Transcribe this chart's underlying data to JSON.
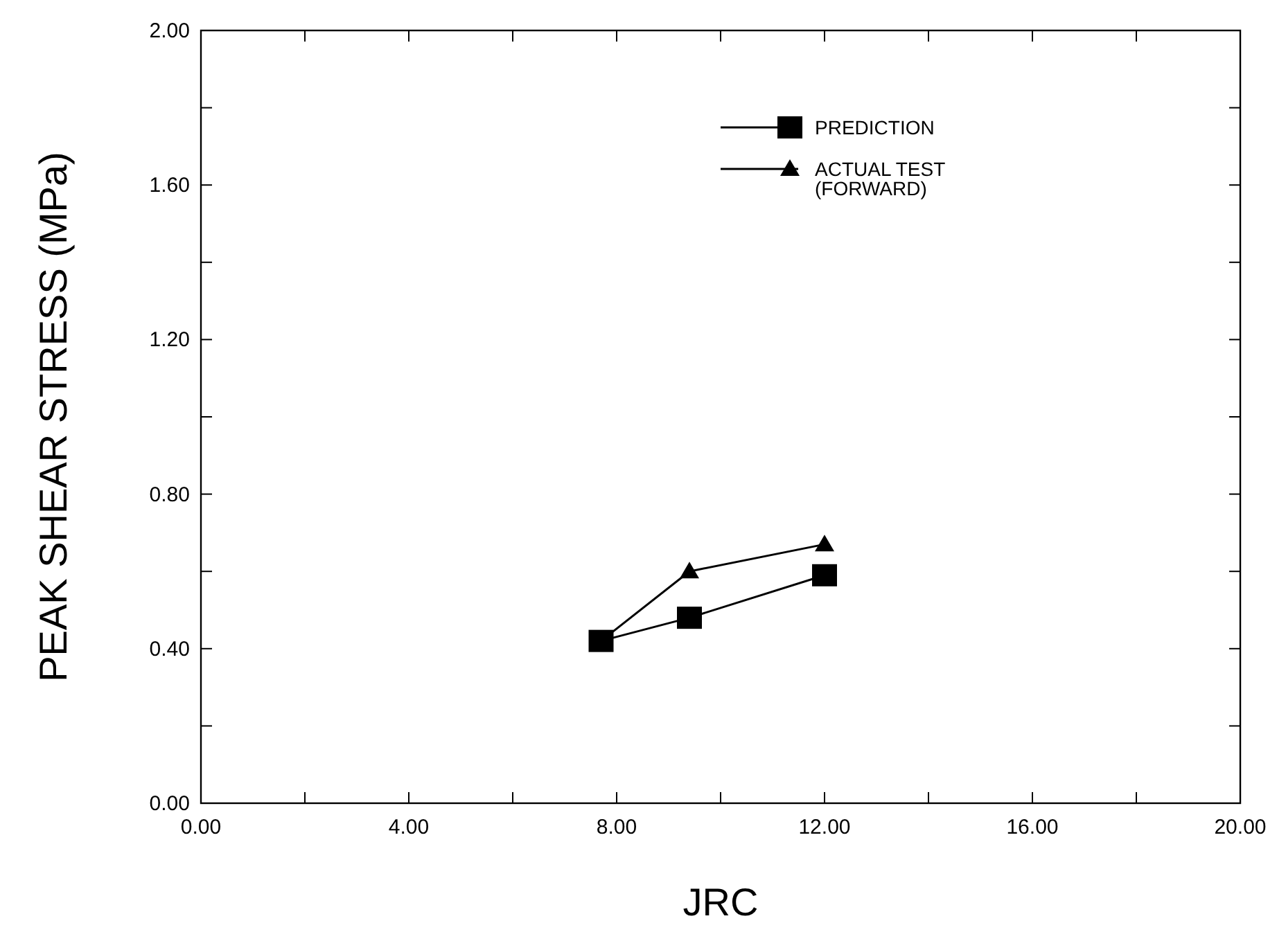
{
  "chart_data": {
    "type": "line",
    "xlabel": "JRC",
    "ylabel": "PEAK SHEAR STRESS (MPa)",
    "xlim": [
      0,
      20
    ],
    "ylim": [
      0,
      2
    ],
    "xticks": [
      {
        "value": 0,
        "label": "0.00"
      },
      {
        "value": 2,
        "label": null
      },
      {
        "value": 4,
        "label": "4.00"
      },
      {
        "value": 6,
        "label": null
      },
      {
        "value": 8,
        "label": "8.00"
      },
      {
        "value": 10,
        "label": null
      },
      {
        "value": 12,
        "label": "12.00"
      },
      {
        "value": 14,
        "label": null
      },
      {
        "value": 16,
        "label": "16.00"
      },
      {
        "value": 18,
        "label": null
      },
      {
        "value": 20,
        "label": "20.00"
      }
    ],
    "yticks": [
      {
        "value": 0,
        "label": "0.00"
      },
      {
        "value": 0.2,
        "label": null
      },
      {
        "value": 0.4,
        "label": "0.40"
      },
      {
        "value": 0.6,
        "label": null
      },
      {
        "value": 0.8,
        "label": "0.80"
      },
      {
        "value": 1.0,
        "label": null
      },
      {
        "value": 1.2,
        "label": "1.20"
      },
      {
        "value": 1.4,
        "label": null
      },
      {
        "value": 1.6,
        "label": "1.60"
      },
      {
        "value": 1.8,
        "label": null
      },
      {
        "value": 2.0,
        "label": "2.00"
      }
    ],
    "series": [
      {
        "name": "PREDICTION",
        "color": "#000000",
        "marker": "square",
        "x": [
          7.7,
          9.4,
          12.0
        ],
        "values": [
          0.42,
          0.48,
          0.59
        ]
      },
      {
        "name": "ACTUAL TEST\n(FORWARD)",
        "color": "#000000",
        "marker": "triangle",
        "x": [
          7.7,
          9.4,
          12.0
        ],
        "values": [
          0.42,
          0.6,
          0.67
        ]
      }
    ],
    "legend": "top right",
    "grid": false
  }
}
